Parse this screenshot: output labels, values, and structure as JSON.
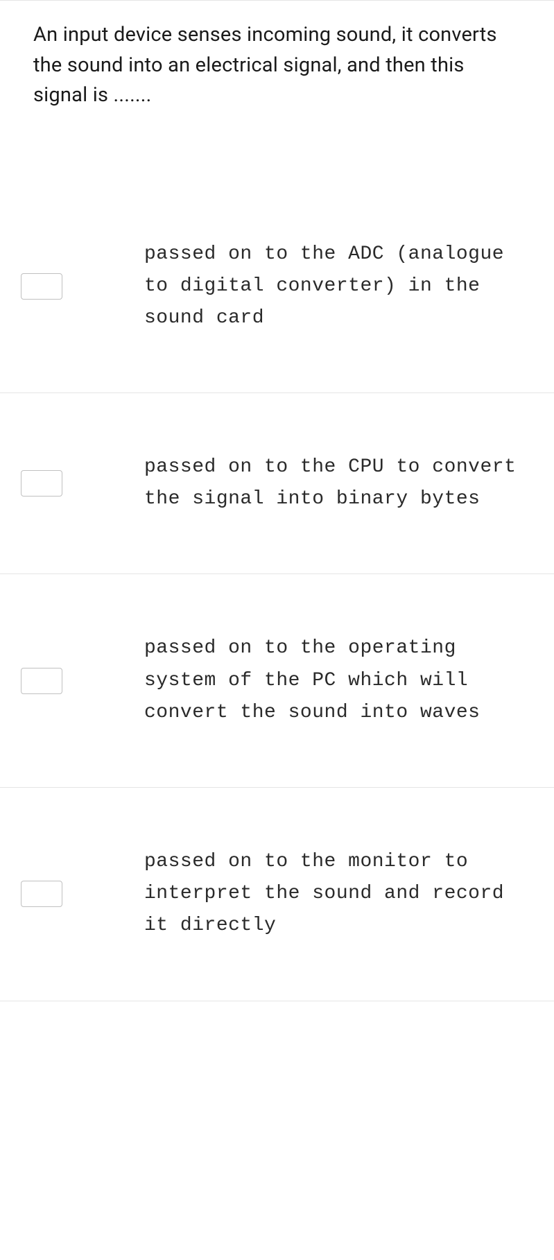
{
  "question": {
    "text": "An input device senses incoming sound, it converts the sound into an electrical signal, and then this signal is .......",
    "text_color": "#1a1a1a",
    "font_size": 29,
    "background_color": "#ffffff",
    "border_color": "#e5e5e5"
  },
  "options": [
    {
      "text": "passed on to the ADC (analogue to digital converter) in the sound card",
      "checked": false
    },
    {
      "text": "passed on to the CPU to convert the signal into binary bytes",
      "checked": false
    },
    {
      "text": "passed on to the operating system of the PC which will convert the sound into waves",
      "checked": false
    },
    {
      "text": "passed on to the monitor to interpret the sound and record it directly",
      "checked": false
    }
  ],
  "option_styling": {
    "font_family": "monospace",
    "font_size": 28,
    "text_color": "#2a2a2a",
    "checkbox_border_color": "#c0c0c0",
    "checkbox_background": "#ffffff",
    "divider_color": "#e5e5e5"
  }
}
